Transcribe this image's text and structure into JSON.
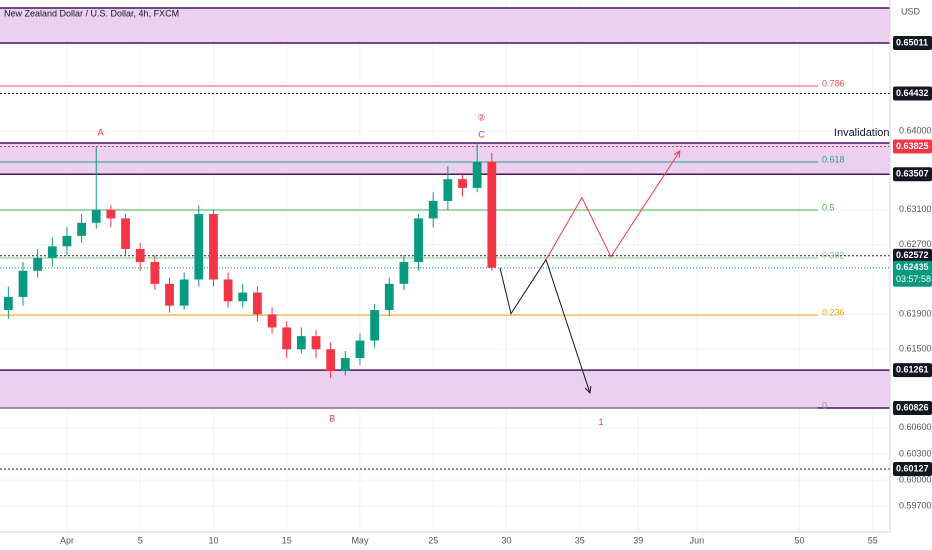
{
  "chart_data": {
    "type": "candlestick",
    "title": "New Zealand Dollar / U.S. Dollar, 4h, FXCM",
    "currency": "USD",
    "xlim": [
      -4.57,
      56.18
    ],
    "ylim": [
      0.59405,
      0.65504
    ],
    "xticks": [
      {
        "value": 0,
        "label": "Apr"
      },
      5,
      10,
      15,
      {
        "value": 20,
        "label": "May"
      },
      25,
      30,
      35,
      39,
      {
        "value": 43,
        "label": "Jun"
      },
      50,
      55
    ],
    "yticks": [
      {
        "value": 0.64,
        "label": "0.64000"
      },
      {
        "value": 0.631,
        "label": "0.63100"
      },
      {
        "value": 0.627,
        "label": "0.62700"
      },
      {
        "value": 0.619,
        "label": "0.61900"
      },
      {
        "value": 0.615,
        "label": "0.61500"
      },
      {
        "value": 0.606,
        "label": "0.60600"
      },
      {
        "value": 0.603,
        "label": "0.60300"
      },
      {
        "value": 0.6,
        "label": "0.60000"
      },
      {
        "value": 0.597,
        "label": "0.59700"
      }
    ],
    "grid": true,
    "up_color": "#089981",
    "down_color": "#f23645",
    "candles": {
      "x": [
        -4,
        -3,
        -2,
        -1,
        0,
        1,
        2,
        3,
        4,
        5,
        6,
        7,
        8,
        9,
        10,
        11,
        12,
        13,
        14,
        15,
        16,
        17,
        18,
        19,
        20,
        21,
        22,
        23,
        24,
        25,
        26,
        27,
        28,
        29
      ],
      "open": [
        0.6195,
        0.621,
        0.624,
        0.6255,
        0.6268,
        0.628,
        0.6295,
        0.631,
        0.63,
        0.6265,
        0.625,
        0.6225,
        0.62,
        0.623,
        0.6305,
        0.623,
        0.6205,
        0.6215,
        0.619,
        0.6175,
        0.615,
        0.6165,
        0.615,
        0.6125,
        0.614,
        0.616,
        0.6195,
        0.6225,
        0.625,
        0.63,
        0.632,
        0.6345,
        0.6335,
        0.6365
      ],
      "high": [
        0.6222,
        0.625,
        0.6265,
        0.6278,
        0.629,
        0.6305,
        0.6382,
        0.6315,
        0.6305,
        0.6272,
        0.6258,
        0.6232,
        0.6238,
        0.6315,
        0.631,
        0.6238,
        0.6225,
        0.6222,
        0.6198,
        0.6182,
        0.6175,
        0.6172,
        0.6158,
        0.6148,
        0.6168,
        0.6202,
        0.6232,
        0.6258,
        0.6305,
        0.633,
        0.636,
        0.6352,
        0.6387,
        0.6375
      ],
      "low": [
        0.6185,
        0.62,
        0.6232,
        0.6245,
        0.6258,
        0.6272,
        0.6288,
        0.629,
        0.6258,
        0.624,
        0.6218,
        0.6192,
        0.6195,
        0.6222,
        0.6222,
        0.6198,
        0.6198,
        0.6182,
        0.6168,
        0.614,
        0.6145,
        0.614,
        0.6117,
        0.612,
        0.6132,
        0.6152,
        0.6188,
        0.6218,
        0.624,
        0.629,
        0.631,
        0.6325,
        0.633,
        0.624
      ],
      "close": [
        0.621,
        0.624,
        0.6255,
        0.6268,
        0.628,
        0.6295,
        0.631,
        0.63,
        0.6265,
        0.625,
        0.6225,
        0.62,
        0.623,
        0.6305,
        0.623,
        0.6205,
        0.6215,
        0.619,
        0.6175,
        0.615,
        0.6165,
        0.615,
        0.6125,
        0.614,
        0.616,
        0.6195,
        0.6225,
        0.625,
        0.63,
        0.632,
        0.6345,
        0.6335,
        0.6365,
        0.62435
      ]
    },
    "zones": [
      {
        "low": 0.65011,
        "high": 0.65412
      },
      {
        "low": 0.63507,
        "high": 0.63864
      },
      {
        "low": 0.60826,
        "high": 0.61261
      }
    ],
    "zone_color": "#e7c8ec",
    "zone_border": "#4a1469",
    "levels": [
      {
        "value": 0.64432,
        "color": "#131722"
      },
      {
        "value": 0.63825,
        "color": "#f23645"
      },
      {
        "value": 0.62572,
        "color": "#131722"
      },
      {
        "value": 0.60127,
        "color": "#131722"
      }
    ],
    "fib": [
      {
        "label": "0.786",
        "value": 0.64518,
        "color": "#f7525f"
      },
      {
        "label": "0.618",
        "value": 0.63647,
        "color": "#2a9d8f"
      },
      {
        "label": "0.5",
        "value": 0.63096,
        "color": "#4caf50"
      },
      {
        "label": "0.382",
        "value": 0.62546,
        "color": "#81c784"
      },
      {
        "label": "0.236",
        "value": 0.61892,
        "color": "#f59e0b"
      },
      {
        "label": "0",
        "value": 0.60826,
        "color": "#9598a1"
      }
    ],
    "price_labels": [
      {
        "value": 0.65011,
        "label": "0.65011",
        "color": "#131722"
      },
      {
        "value": 0.64432,
        "label": "0.64432",
        "color": "#131722"
      },
      {
        "value": 0.63825,
        "label": "0.63825",
        "color": "#f23645"
      },
      {
        "value": 0.63507,
        "label": "0.63507",
        "color": "#131722"
      },
      {
        "value": 0.62572,
        "label": "0.62572",
        "color": "#131722"
      },
      {
        "value": 0.61261,
        "label": "0.61261",
        "color": "#131722"
      },
      {
        "value": 0.60826,
        "label": "0.60826",
        "color": "#131722"
      },
      {
        "value": 0.60127,
        "label": "0.60127",
        "color": "#131722"
      }
    ],
    "current": {
      "value": 0.62435,
      "label": "0.62435",
      "countdown": "03:57:58",
      "color": "#089981"
    },
    "projections": [
      {
        "color": "#131722",
        "x": [
          29.56,
          30.31,
          32.7,
          35.7
        ],
        "y": [
          0.62435,
          0.61908,
          0.62527,
          0.60999
        ]
      },
      {
        "color": "#f23645",
        "x": [
          32.7,
          35.15,
          37.13,
          41.84
        ],
        "y": [
          0.62527,
          0.63238,
          0.62561,
          0.63774
        ]
      }
    ],
    "annotations": [
      {
        "text": "A",
        "x": 2.3,
        "y": 0.6398,
        "color": "#f23645"
      },
      {
        "text": "B",
        "x": 18.1,
        "y": 0.607,
        "color": "#f23645"
      },
      {
        "text": "C",
        "x": 28.3,
        "y": 0.63957,
        "color": "#f23645"
      },
      {
        "text": "②",
        "x": 28.3,
        "y": 0.6415,
        "color": "#f23645"
      },
      {
        "text": "1",
        "x": 36.45,
        "y": 0.6066,
        "color": "#f23645"
      },
      {
        "text": "Invalidation",
        "x": 54.25,
        "y": 0.6398,
        "color": "#131722"
      }
    ]
  }
}
